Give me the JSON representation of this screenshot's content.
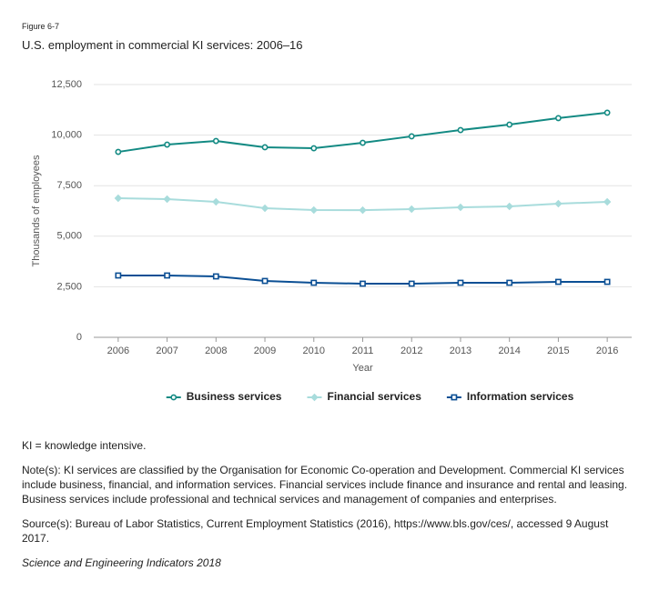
{
  "figure_label": "Figure 6-7",
  "chart_data": {
    "type": "line",
    "title": "U.S. employment in commercial KI services: 2006–16",
    "x_label": "Year",
    "y_label": "Thousands of employees",
    "categories": [
      "2006",
      "2007",
      "2008",
      "2009",
      "2010",
      "2011",
      "2012",
      "2013",
      "2014",
      "2015",
      "2016"
    ],
    "series": [
      {
        "name": "Business services",
        "color": "#138a83",
        "marker": "circle",
        "values": [
          9170,
          9530,
          9710,
          9400,
          9350,
          9620,
          9940,
          10250,
          10520,
          10840,
          11110
        ]
      },
      {
        "name": "Financial services",
        "color": "#a8dcdc",
        "marker": "diamond",
        "values": [
          6880,
          6835,
          6700,
          6385,
          6295,
          6290,
          6340,
          6430,
          6475,
          6610,
          6700
        ]
      },
      {
        "name": "Information services",
        "color": "#0b4f94",
        "marker": "square",
        "values": [
          3058,
          3058,
          3013,
          2788,
          2698,
          2653,
          2653,
          2698,
          2698,
          2743,
          2743
        ]
      }
    ],
    "ylim": [
      0,
      12500
    ],
    "yticks": [
      0,
      {
        "value": 2500,
        "label": "2,500"
      },
      {
        "value": 5000,
        "label": "5,000"
      },
      {
        "value": 7500,
        "label": "7,500"
      },
      {
        "value": 10000,
        "label": "10,000"
      },
      {
        "value": 12500,
        "label": "12,500"
      }
    ],
    "grid": true,
    "legend": "bottom"
  },
  "notes": [
    "KI = knowledge intensive.",
    "Note(s): KI services are classified by the Organisation for Economic Co-operation and Development. Commercial KI services include business, financial, and information services. Financial services include finance and insurance and rental and leasing. Business services include professional and technical services and management of companies and enterprises.",
    "Source(s): Bureau of Labor Statistics, Current Employment Statistics (2016), https://www.bls.gov/ces/, accessed 9 August 2017."
  ],
  "citation": "Science and Engineering Indicators 2018"
}
